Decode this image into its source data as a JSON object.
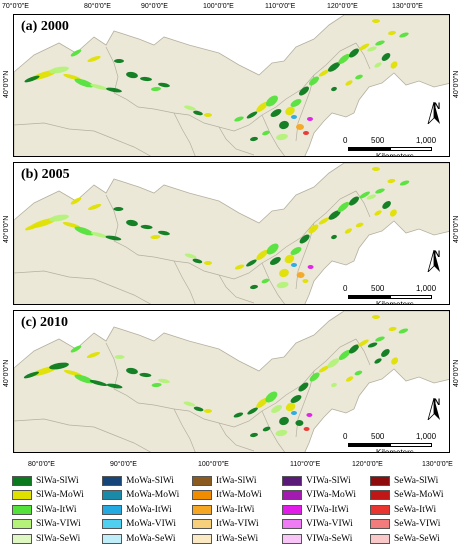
{
  "top_axis_labels": [
    "70°0'0\"E",
    "80°0'0\"E",
    "90°0'0\"E",
    "100°0'0\"E",
    "110°0'0\"E",
    "120°0'0\"E",
    "130°0'0\"E"
  ],
  "bottom_axis_labels": [
    "80°0'0\"E",
    "90°0'0\"E",
    "100°0'0\"E",
    "110°0'0\"E",
    "120°0'0\"E",
    "130°0'0\"E"
  ],
  "left_axis_label": "40°0'0\"N",
  "right_axis_label": "40°0'0\"N",
  "panels": [
    {
      "title": "(a) 2000"
    },
    {
      "title": "(b) 2005"
    },
    {
      "title": "(c) 2010"
    }
  ],
  "north_arrow": "N",
  "scale_bar": {
    "ticks": [
      "0",
      "500",
      "1,000"
    ],
    "unit": "Kilometers"
  },
  "colors": {
    "land": "#ebe8d7",
    "boundary": "#b5b0a0",
    "sea": "#ffffff"
  },
  "legend": [
    {
      "label": "SlWa-SlWi",
      "color": "#0b7a1e"
    },
    {
      "label": "SlWa-MoWi",
      "color": "#e0e000"
    },
    {
      "label": "SlWa-ItWi",
      "color": "#54e23a"
    },
    {
      "label": "SlWa-VIWi",
      "color": "#b4f27a"
    },
    {
      "label": "SlWa-SeWi",
      "color": "#dff7c3"
    },
    {
      "label": "MoWa-SlWi",
      "color": "#16457a"
    },
    {
      "label": "MoWa-MoWi",
      "color": "#1a8aa8"
    },
    {
      "label": "MoWa-ItWi",
      "color": "#25a9e1"
    },
    {
      "label": "MoWa-VIWi",
      "color": "#4fd0f0"
    },
    {
      "label": "MoWa-SeWi",
      "color": "#bfeef9"
    },
    {
      "label": "ItWa-SlWi",
      "color": "#8a5a1e"
    },
    {
      "label": "ItWa-MoWi",
      "color": "#f08c00"
    },
    {
      "label": "ItWa-ItWi",
      "color": "#f5a623"
    },
    {
      "label": "ItWa-VIWi",
      "color": "#f8cf7a"
    },
    {
      "label": "ItWa-SeWi",
      "color": "#fbe9c4"
    },
    {
      "label": "VIWa-SlWi",
      "color": "#5a1a78"
    },
    {
      "label": "VIWa-MoWi",
      "color": "#a21ab0"
    },
    {
      "label": "VIWa-ItWi",
      "color": "#e11be8"
    },
    {
      "label": "VIWa-VIWi",
      "color": "#f07cf5"
    },
    {
      "label": "VIWa-SeWi",
      "color": "#f7c6f7"
    },
    {
      "label": "SeWa-SlWi",
      "color": "#8e0c0c"
    },
    {
      "label": "SeWa-MoWi",
      "color": "#c01616"
    },
    {
      "label": "SeWa-ItWi",
      "color": "#e8352f"
    },
    {
      "label": "SeWa-VIWi",
      "color": "#f27c7c"
    },
    {
      "label": "SeWa-SeWi",
      "color": "#f9c9c9"
    }
  ]
}
